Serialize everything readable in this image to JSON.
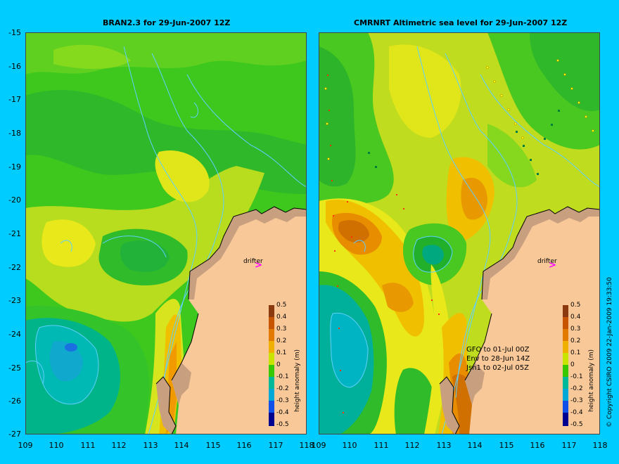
{
  "panels": [
    {
      "title": "BRAN2.3 for 29-Jun-2007 12Z"
    },
    {
      "title": "CMRNRT Altimetric sea level  for 29-Jun-2007 12Z"
    }
  ],
  "axes": {
    "lat_ticks": [
      "-15",
      "-16",
      "-17",
      "-18",
      "-19",
      "-20",
      "-21",
      "-22",
      "-23",
      "-24",
      "-25",
      "-26",
      "-27"
    ],
    "lon_ticks_left": [
      "109",
      "110",
      "111",
      "112",
      "113",
      "114",
      "115",
      "116",
      "117",
      "118"
    ],
    "lon_ticks_right": [
      "109",
      "110",
      "111",
      "112",
      "113",
      "114",
      "115",
      "116",
      "117",
      "118"
    ]
  },
  "colorbar": {
    "title": "height anomaly (m)",
    "labels": [
      "0.5",
      "0.4",
      "0.3",
      "0.2",
      "0.1",
      "0",
      "-0.1",
      "-0.2",
      "-0.3",
      "-0.4",
      "-0.5"
    ],
    "colors": [
      "#8b3a0f",
      "#c75400",
      "#e27a00",
      "#f0b000",
      "#f3e600",
      "#c8e400",
      "#38c800",
      "#00b89a",
      "#00a8d8",
      "#1050e8",
      "#000090"
    ]
  },
  "drifter": {
    "label": "drifter",
    "mark": ">"
  },
  "satellites": [
    "GFO to 01-Jul 00Z",
    "Env to 28-Jun 14Z",
    "Jsn1 to 02-Jul 05Z"
  ],
  "copyright": "© Copyright CSIRO 2009   22-Jan-2009 19:33:50",
  "colors": {
    "background": "#00ccff",
    "land": "#f8c898",
    "coast": "#c8a080",
    "contour": "#5fd0ff"
  }
}
